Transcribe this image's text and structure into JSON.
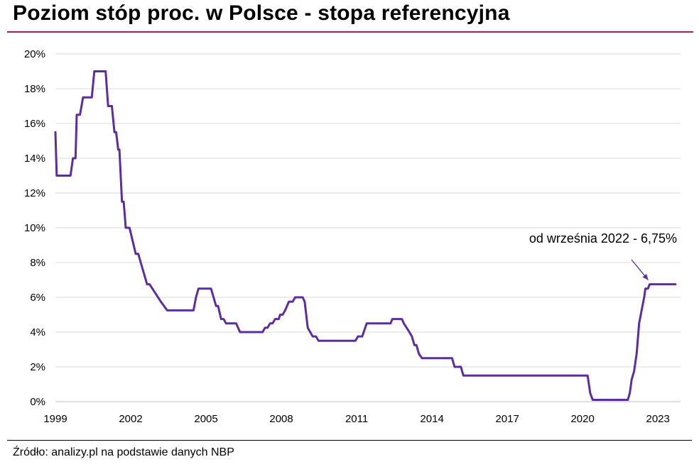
{
  "title": "Poziom stóp proc. w Polsce - stopa referencyjna",
  "source": "Źródło: analizy.pl na podstawie danych NBP",
  "colors": {
    "line": "#5b2d9e",
    "title_rule": "#b0184f",
    "grid": "#d9d9d9"
  },
  "chart_data": {
    "type": "line",
    "title": "Poziom stóp proc. w Polsce - stopa referencyjna",
    "xlim": [
      1999.0,
      2023.9
    ],
    "ylim": [
      0,
      20
    ],
    "xticks": [
      1999,
      2002,
      2005,
      2008,
      2011,
      2014,
      2017,
      2020,
      2023
    ],
    "xtick_labels": [
      "1999",
      "2002",
      "2005",
      "2008",
      "2011",
      "2014",
      "2017",
      "2020",
      "2023"
    ],
    "yticks": [
      0,
      2,
      4,
      6,
      8,
      10,
      12,
      14,
      16,
      18,
      20
    ],
    "ytick_labels": [
      "0%",
      "2%",
      "4%",
      "6%",
      "8%",
      "10%",
      "12%",
      "14%",
      "16%",
      "18%",
      "20%"
    ],
    "grid": "horizontal",
    "annotation": {
      "text": "od września 2022 - 6,75%",
      "x": 2022.67,
      "y": 6.75
    },
    "series": [
      {
        "points": [
          [
            1999.0,
            15.5
          ],
          [
            1999.05,
            13.0
          ],
          [
            1999.6,
            13.0
          ],
          [
            1999.7,
            14.0
          ],
          [
            1999.8,
            14.0
          ],
          [
            1999.85,
            16.5
          ],
          [
            1999.98,
            16.5
          ],
          [
            2000.1,
            17.5
          ],
          [
            2000.45,
            17.5
          ],
          [
            2000.55,
            19.0
          ],
          [
            2001.0,
            19.0
          ],
          [
            2001.1,
            17.0
          ],
          [
            2001.25,
            17.0
          ],
          [
            2001.35,
            15.5
          ],
          [
            2001.42,
            15.5
          ],
          [
            2001.5,
            14.5
          ],
          [
            2001.55,
            14.5
          ],
          [
            2001.65,
            11.5
          ],
          [
            2001.72,
            11.5
          ],
          [
            2001.8,
            10.0
          ],
          [
            2001.95,
            10.0
          ],
          [
            2002.2,
            8.5
          ],
          [
            2002.3,
            8.5
          ],
          [
            2002.65,
            6.75
          ],
          [
            2002.75,
            6.75
          ],
          [
            2003.2,
            5.75
          ],
          [
            2003.45,
            5.25
          ],
          [
            2004.5,
            5.25
          ],
          [
            2004.6,
            6.0
          ],
          [
            2004.7,
            6.5
          ],
          [
            2005.2,
            6.5
          ],
          [
            2005.4,
            5.5
          ],
          [
            2005.48,
            5.5
          ],
          [
            2005.6,
            4.75
          ],
          [
            2005.7,
            4.75
          ],
          [
            2005.8,
            4.5
          ],
          [
            2006.2,
            4.5
          ],
          [
            2006.35,
            4.0
          ],
          [
            2007.25,
            4.0
          ],
          [
            2007.35,
            4.25
          ],
          [
            2007.45,
            4.25
          ],
          [
            2007.55,
            4.5
          ],
          [
            2007.65,
            4.5
          ],
          [
            2007.75,
            4.75
          ],
          [
            2007.9,
            4.75
          ],
          [
            2007.95,
            5.0
          ],
          [
            2008.05,
            5.0
          ],
          [
            2008.15,
            5.25
          ],
          [
            2008.3,
            5.75
          ],
          [
            2008.45,
            5.75
          ],
          [
            2008.55,
            6.0
          ],
          [
            2008.85,
            6.0
          ],
          [
            2008.93,
            5.75
          ],
          [
            2009.05,
            4.25
          ],
          [
            2009.25,
            3.75
          ],
          [
            2009.38,
            3.75
          ],
          [
            2009.48,
            3.5
          ],
          [
            2010.95,
            3.5
          ],
          [
            2011.05,
            3.75
          ],
          [
            2011.22,
            3.75
          ],
          [
            2011.4,
            4.5
          ],
          [
            2012.35,
            4.5
          ],
          [
            2012.42,
            4.75
          ],
          [
            2012.8,
            4.75
          ],
          [
            2012.88,
            4.5
          ],
          [
            2013.1,
            4.0
          ],
          [
            2013.2,
            3.75
          ],
          [
            2013.3,
            3.25
          ],
          [
            2013.38,
            3.25
          ],
          [
            2013.48,
            2.75
          ],
          [
            2013.6,
            2.5
          ],
          [
            2014.8,
            2.5
          ],
          [
            2014.9,
            2.0
          ],
          [
            2015.15,
            2.0
          ],
          [
            2015.25,
            1.5
          ],
          [
            2020.2,
            1.5
          ],
          [
            2020.3,
            0.5
          ],
          [
            2020.4,
            0.1
          ],
          [
            2021.8,
            0.1
          ],
          [
            2021.88,
            0.5
          ],
          [
            2021.95,
            1.25
          ],
          [
            2022.05,
            1.75
          ],
          [
            2022.15,
            2.75
          ],
          [
            2022.25,
            4.5
          ],
          [
            2022.35,
            5.25
          ],
          [
            2022.45,
            6.0
          ],
          [
            2022.5,
            6.5
          ],
          [
            2022.6,
            6.5
          ],
          [
            2022.67,
            6.75
          ],
          [
            2023.7,
            6.75
          ]
        ]
      }
    ]
  }
}
